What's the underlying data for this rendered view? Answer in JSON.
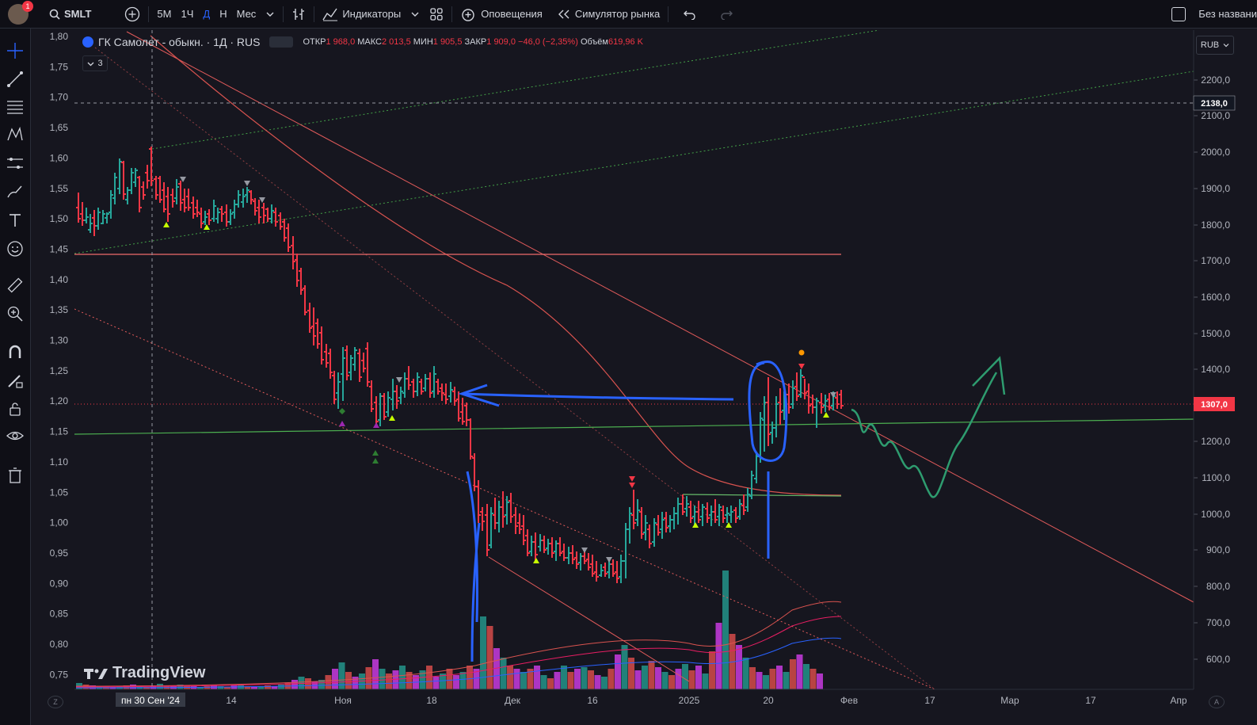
{
  "topbar": {
    "notifications_badge": "1",
    "symbol": "SMLT",
    "intervals": [
      "5М",
      "1Ч",
      "Д",
      "Н",
      "Мес"
    ],
    "active_interval": "Д",
    "indicators_label": "Индикаторы",
    "alerts_label": "Оповещения",
    "replay_label": "Симулятор рынка",
    "layout_name": "Без названи"
  },
  "legend": {
    "title": "ГК Самолет - обыкн. · 1Д · RUS",
    "open_label": "ОТКР",
    "open": "1 968,0",
    "high_label": "МАКС",
    "high": "2 013,5",
    "low_label": "МИН",
    "low": "1 905,5",
    "close_label": "ЗАКР",
    "close": "1 909,0",
    "change": "−46,0 (−2,35%)",
    "volume_label": "Объём",
    "volume": "619,96 K",
    "collapse_count": "3"
  },
  "currency": "RUB",
  "brand": "TradingView",
  "left_axis_labels": [
    "1,80",
    "1,75",
    "1,70",
    "1,65",
    "1,60",
    "1,55",
    "1,50",
    "1,45",
    "1,40",
    "1,35",
    "1,30",
    "1,25",
    "1,20",
    "1,15",
    "1,10",
    "1,05",
    "1,00",
    "0,95",
    "0,90",
    "0,85",
    "0,80",
    "0,75"
  ],
  "right_axis_labels": [
    "2200,0",
    "2100,0",
    "2000,0",
    "1900,0",
    "1800,0",
    "1700,0",
    "1600,0",
    "1500,0",
    "1400,0",
    "1200,0",
    "1100,0",
    "1000,0",
    "900,0",
    "800,0",
    "700,0",
    "600,0"
  ],
  "price_tags": {
    "crosshair_price": "2138,0",
    "last_price": "1307,0"
  },
  "time_axis_labels": [
    "пн 30 Сен '24",
    "14",
    "Ноя",
    "18",
    "Дек",
    "16",
    "2025",
    "20",
    "Фев",
    "17",
    "Мар",
    "17",
    "Апр"
  ],
  "colors": {
    "up": "#26a69a",
    "down": "#f23645",
    "last_price": "#f23645",
    "accent": "#2962ff"
  }
}
